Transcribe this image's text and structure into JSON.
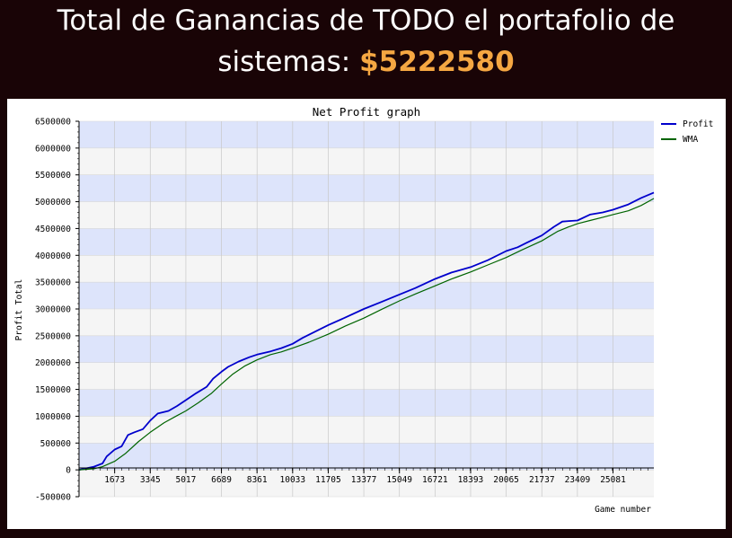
{
  "headline": {
    "line1": "Total de Ganancias de TODO el portafolio de",
    "line2_prefix": "sistemas: ",
    "amount": "$5222580"
  },
  "colors": {
    "background": "#190406",
    "amount": "#f5a742",
    "band_blue": "#dde4fb",
    "band_gray": "#f5f5f5",
    "profit": "#0000cc",
    "wma": "#006400"
  },
  "chart_data": {
    "type": "line",
    "title": "Net Profit graph",
    "xlabel": "Game number",
    "ylabel": "Profit Total",
    "xlim": [
      0,
      27000
    ],
    "ylim": [
      -500000,
      6500000
    ],
    "x_ticks": [
      "1673",
      "3345",
      "5017",
      "6689",
      "8361",
      "10033",
      "11705",
      "13377",
      "15049",
      "16721",
      "18393",
      "20065",
      "21737",
      "23409",
      "25081"
    ],
    "y_ticks": [
      "6500000",
      "6000000",
      "5500000",
      "5000000",
      "4500000",
      "4000000",
      "3500000",
      "3000000",
      "2500000",
      "2000000",
      "1500000",
      "1000000",
      "500000",
      "0",
      "-500000"
    ],
    "legend_position": "top-right",
    "series": [
      {
        "name": "Profit",
        "x": [
          0,
          700,
          1100,
          1300,
          1673,
          2000,
          2300,
          2600,
          3000,
          3345,
          3700,
          4200,
          4600,
          5017,
          5500,
          6000,
          6300,
          6689,
          7000,
          7500,
          8000,
          8361,
          9000,
          9500,
          10033,
          10500,
          11000,
          11705,
          12500,
          13377,
          14200,
          15049,
          15800,
          16721,
          17500,
          18393,
          19200,
          20065,
          20600,
          21000,
          21737,
          22300,
          22700,
          23000,
          23409,
          24000,
          24600,
          25081,
          25800,
          26400,
          27000
        ],
        "values": [
          0,
          60000,
          120000,
          250000,
          380000,
          440000,
          650000,
          700000,
          760000,
          920000,
          1050000,
          1100000,
          1190000,
          1300000,
          1430000,
          1550000,
          1700000,
          1830000,
          1920000,
          2020000,
          2100000,
          2150000,
          2210000,
          2270000,
          2350000,
          2460000,
          2560000,
          2700000,
          2840000,
          3000000,
          3130000,
          3270000,
          3390000,
          3560000,
          3680000,
          3780000,
          3910000,
          4080000,
          4150000,
          4230000,
          4370000,
          4530000,
          4630000,
          4640000,
          4650000,
          4760000,
          4800000,
          4850000,
          4950000,
          5070000,
          5170000
        ]
      },
      {
        "name": "WMA",
        "x": [
          0,
          700,
          1100,
          1673,
          2200,
          2800,
          3345,
          4000,
          4600,
          5017,
          5600,
          6200,
          6689,
          7200,
          7800,
          8361,
          9000,
          9500,
          10033,
          10800,
          11705,
          12500,
          13377,
          14200,
          15049,
          15800,
          16721,
          17500,
          18393,
          19200,
          20065,
          20800,
          21737,
          22500,
          23000,
          23409,
          24000,
          24600,
          25081,
          25800,
          26400,
          27000
        ],
        "values": [
          0,
          20000,
          60000,
          160000,
          310000,
          530000,
          700000,
          880000,
          1010000,
          1100000,
          1250000,
          1420000,
          1600000,
          1780000,
          1940000,
          2050000,
          2150000,
          2200000,
          2270000,
          2380000,
          2530000,
          2680000,
          2830000,
          2990000,
          3150000,
          3280000,
          3430000,
          3560000,
          3690000,
          3820000,
          3960000,
          4100000,
          4270000,
          4450000,
          4530000,
          4590000,
          4650000,
          4710000,
          4760000,
          4830000,
          4930000,
          5060000
        ]
      }
    ]
  }
}
